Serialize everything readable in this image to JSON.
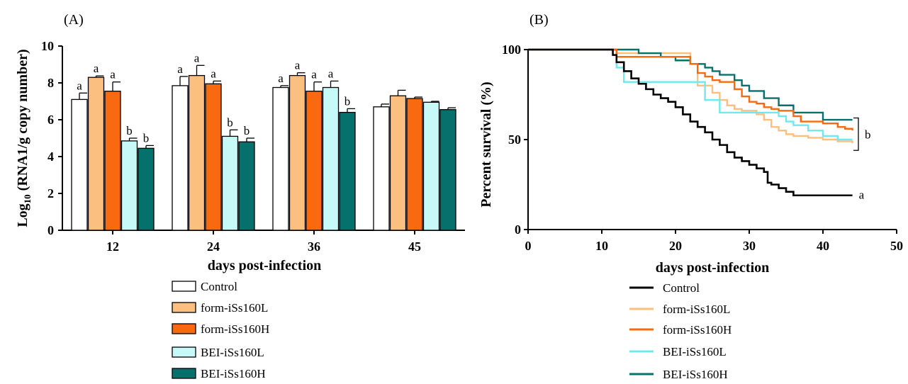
{
  "chart_data": [
    {
      "type": "bar",
      "panel_label": "(A)",
      "xlabel": "days post-infection",
      "ylabel_parts": [
        "Log",
        "10",
        " (RNA1/g copy number)"
      ],
      "ylim": [
        0,
        10
      ],
      "yticks": [
        0,
        2,
        4,
        6,
        8,
        10
      ],
      "categories": [
        "12",
        "24",
        "36",
        "45"
      ],
      "series": [
        {
          "name": "Control",
          "color": "#ffffff",
          "values": [
            7.1,
            7.85,
            7.75,
            6.7
          ],
          "errors": [
            0.35,
            0.5,
            0.1,
            0.15
          ],
          "letters": [
            "a",
            "a",
            "a",
            ""
          ]
        },
        {
          "name": "form-iSs160L",
          "color": "#fbbf80",
          "values": [
            8.3,
            8.4,
            8.4,
            7.3
          ],
          "errors": [
            0.08,
            0.55,
            0.15,
            0.3
          ],
          "letters": [
            "a",
            "a",
            "a",
            ""
          ]
        },
        {
          "name": "form-iSs160H",
          "color": "#f96a10",
          "values": [
            7.55,
            7.95,
            7.55,
            7.15
          ],
          "errors": [
            0.5,
            0.15,
            0.5,
            0.08
          ],
          "letters": [
            "a",
            "a",
            "a",
            ""
          ]
        },
        {
          "name": "BEI-iSs160L",
          "color": "#c8f9f9",
          "values": [
            4.85,
            5.1,
            7.75,
            6.95
          ],
          "errors": [
            0.15,
            0.35,
            0.35,
            0.05
          ],
          "letters": [
            "b",
            "b",
            "a",
            ""
          ]
        },
        {
          "name": "BEI-iSs160H",
          "color": "#06706d",
          "values": [
            4.45,
            4.8,
            6.4,
            6.55
          ],
          "errors": [
            0.15,
            0.2,
            0.2,
            0.1
          ],
          "letters": [
            "b",
            "b",
            "b",
            ""
          ]
        }
      ],
      "legend_position": "bottom"
    },
    {
      "type": "line",
      "subtype": "step",
      "panel_label": "(B)",
      "xlabel": "days post-infection",
      "ylabel": "Percent survival (%)",
      "xlim": [
        0,
        50
      ],
      "ylim": [
        0,
        100
      ],
      "xticks": [
        0,
        10,
        20,
        30,
        40,
        50
      ],
      "yticks": [
        0,
        50,
        100
      ],
      "series": [
        {
          "name": "Control",
          "color": "#000000",
          "x": [
            0,
            11,
            11.5,
            12,
            13,
            14,
            15,
            16,
            17,
            18,
            19,
            20,
            21,
            22,
            23,
            24,
            25,
            26,
            27,
            28,
            29,
            30,
            31,
            32,
            32.5,
            33,
            34,
            35,
            36,
            44
          ],
          "y": [
            100,
            100,
            97,
            93,
            88,
            84,
            81,
            78,
            75,
            73,
            71,
            68,
            64,
            60,
            57,
            54,
            50,
            47,
            43,
            40,
            38,
            36,
            34,
            32,
            26,
            25,
            23,
            21,
            19,
            19
          ]
        },
        {
          "name": "form-iSs160L",
          "color": "#fbbf80",
          "x": [
            0,
            10,
            12,
            21,
            22,
            23,
            25,
            26,
            27,
            28,
            29,
            31,
            32,
            33,
            34,
            35,
            36,
            38,
            40,
            42,
            44
          ],
          "y": [
            100,
            100,
            98,
            98,
            92,
            80,
            76,
            72,
            69,
            67,
            66,
            64,
            61,
            57,
            55,
            53,
            52,
            51,
            50,
            49,
            48
          ]
        },
        {
          "name": "form-iSs160H",
          "color": "#f96a10",
          "x": [
            0,
            10,
            12,
            22,
            23,
            24,
            25,
            26,
            28,
            29,
            30,
            31,
            32,
            33,
            34,
            36,
            37,
            40,
            42,
            43,
            44
          ],
          "y": [
            100,
            100,
            96,
            92,
            87,
            85,
            83,
            82,
            78,
            74,
            71,
            70,
            68,
            67,
            66,
            63,
            60,
            59,
            57,
            56,
            55
          ]
        },
        {
          "name": "BEI-iSs160L",
          "color": "#6fe8f0",
          "x": [
            0,
            10,
            12,
            13,
            21,
            24,
            26,
            32,
            34,
            35,
            36,
            38,
            40,
            42,
            44
          ],
          "y": [
            100,
            100,
            90,
            82,
            82,
            72,
            65,
            65,
            63,
            60,
            58,
            55,
            52,
            50,
            50
          ]
        },
        {
          "name": "BEI-iSs160H",
          "color": "#06706d",
          "x": [
            0,
            10,
            15,
            18,
            20,
            22,
            24,
            25,
            26,
            28,
            29,
            30,
            32,
            34,
            36,
            40,
            44
          ],
          "y": [
            100,
            100,
            98,
            96,
            94,
            92,
            90,
            88,
            86,
            83,
            80,
            77,
            73,
            69,
            65,
            61,
            61
          ]
        }
      ],
      "annotations": [
        {
          "text": "b",
          "target": "bracket"
        },
        {
          "text": "a",
          "target": "Control"
        }
      ],
      "legend_position": "bottom"
    }
  ]
}
